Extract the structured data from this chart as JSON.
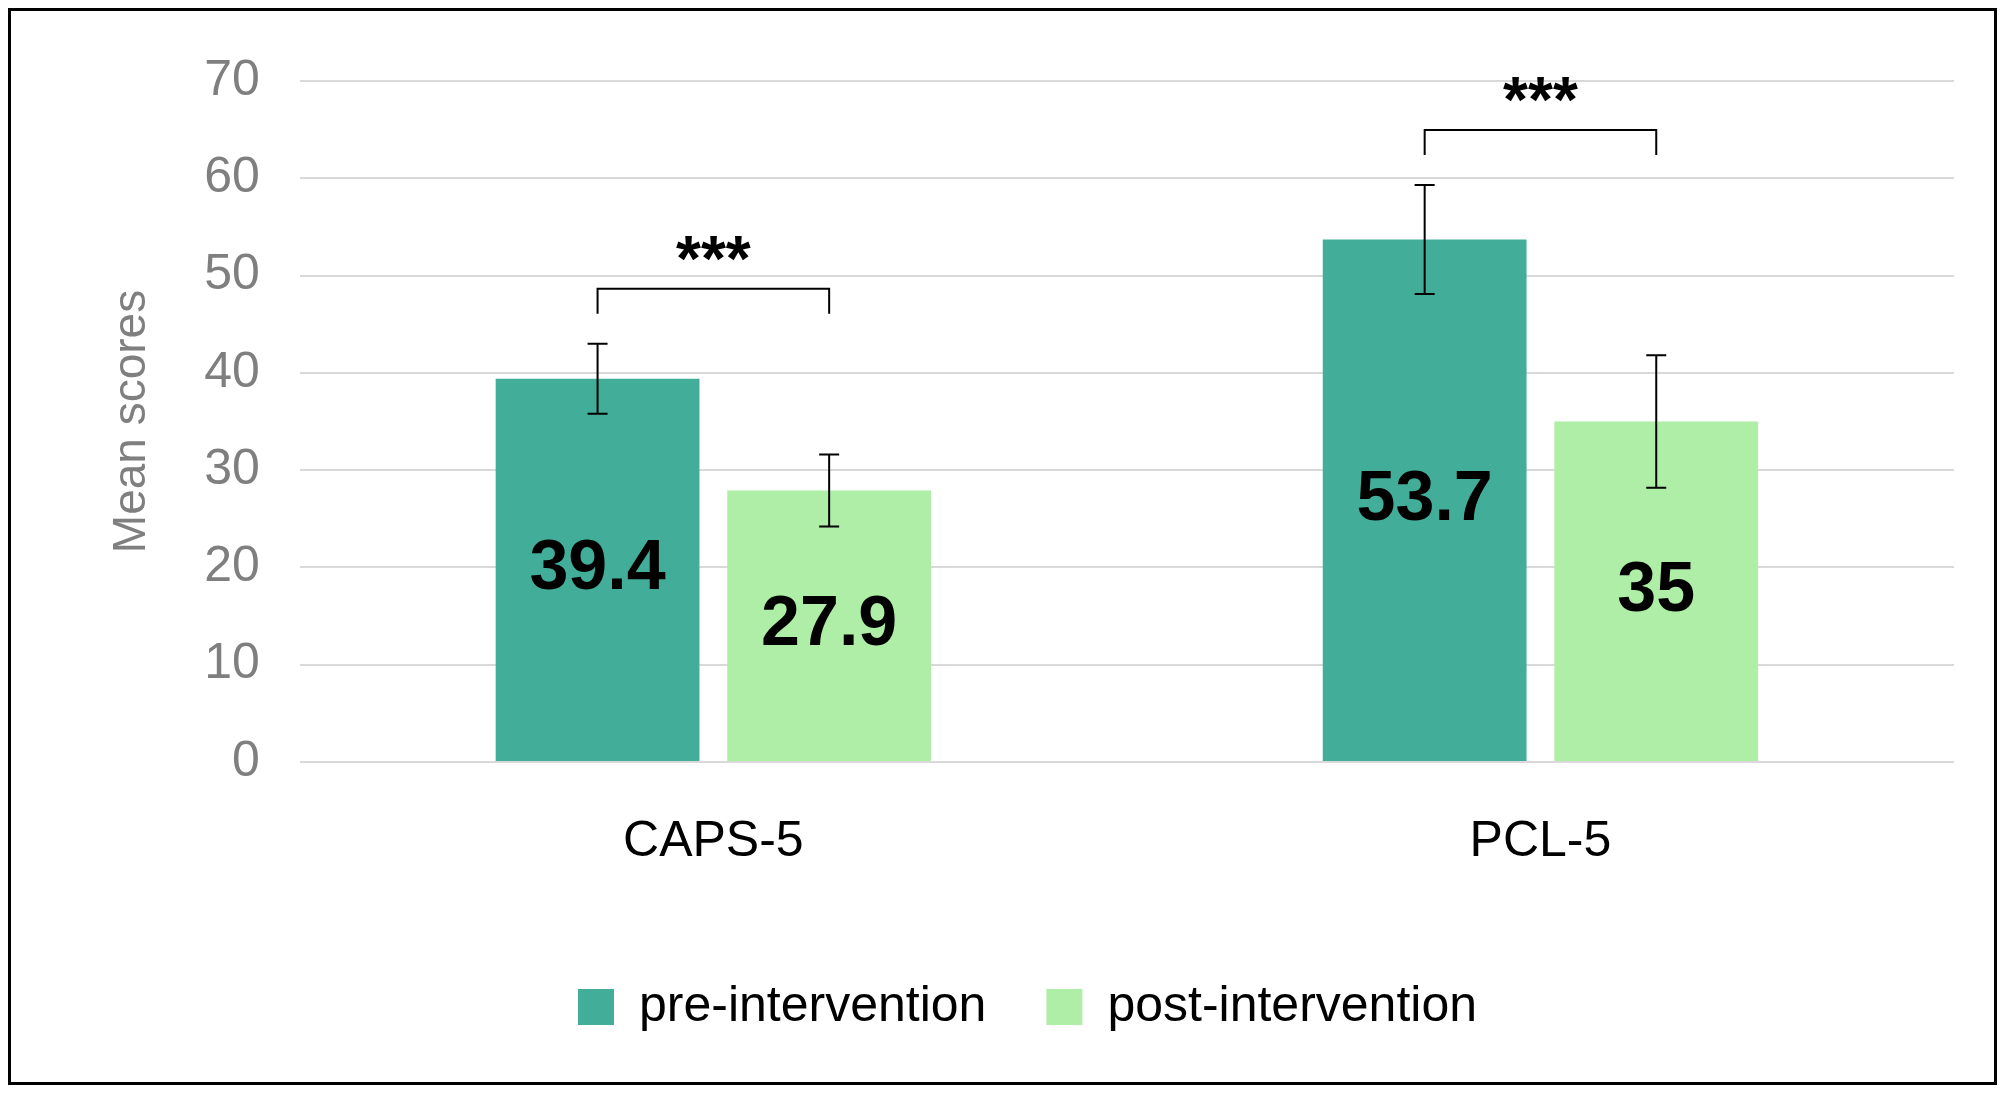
{
  "chart_data": {
    "type": "bar",
    "ylabel": "Mean scores",
    "categories": [
      "CAPS-5",
      "PCL-5"
    ],
    "series": [
      {
        "name": "pre-intervention",
        "color": "#42ae9a",
        "values": [
          39.4,
          53.7
        ],
        "errors": [
          3.6,
          5.6
        ]
      },
      {
        "name": "post-intervention",
        "color": "#aeeea6",
        "values": [
          27.9,
          35
        ],
        "errors": [
          3.7,
          6.8
        ]
      }
    ],
    "ylim": [
      0,
      70
    ],
    "yticks": [
      0,
      10,
      20,
      30,
      40,
      50,
      60,
      70
    ],
    "grid": "y",
    "legend": "bottom",
    "data_labels": true,
    "annotations": [
      "***",
      "***"
    ]
  }
}
